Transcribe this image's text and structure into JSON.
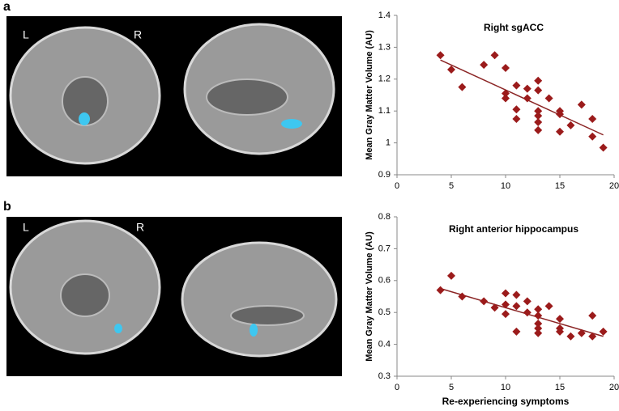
{
  "figure": {
    "panels": [
      {
        "label": "a",
        "left": "L",
        "right": "R"
      },
      {
        "label": "b",
        "left": "L",
        "right": "R"
      }
    ]
  },
  "chart_data": [
    {
      "type": "scatter",
      "title": "Right sgACC",
      "ylabel": "Mean Gray Matter Volume (AU)",
      "x": [
        4,
        5,
        6,
        8,
        9,
        10,
        10,
        10,
        11,
        11,
        11,
        12,
        12,
        13,
        13,
        13,
        13,
        13,
        13,
        14,
        15,
        15,
        15,
        16,
        17,
        18,
        18,
        19
      ],
      "values": [
        1.275,
        1.23,
        1.175,
        1.245,
        1.275,
        1.235,
        1.155,
        1.14,
        1.18,
        1.105,
        1.075,
        1.17,
        1.14,
        1.195,
        1.165,
        1.1,
        1.085,
        1.065,
        1.04,
        1.14,
        1.1,
        1.09,
        1.035,
        1.055,
        1.12,
        1.075,
        1.02,
        0.985
      ],
      "color": "#9b1b1b",
      "trendline": {
        "x": [
          4,
          19
        ],
        "y": [
          1.26,
          1.025
        ],
        "color": "#8b2525"
      },
      "xlim": [
        0,
        20
      ],
      "xticks": [
        0,
        5,
        10,
        15,
        20
      ],
      "ylim": [
        0.9,
        1.4
      ],
      "yticks": [
        0.9,
        1,
        1.1,
        1.2,
        1.3,
        1.4
      ]
    },
    {
      "type": "scatter",
      "title": "Right anterior hippocampus",
      "ylabel": "Mean Gray Matter Volume (AU)",
      "xlabel": "Re-experiencing symptoms",
      "x": [
        4,
        5,
        6,
        8,
        9,
        10,
        10,
        10,
        11,
        11,
        11,
        12,
        12,
        13,
        13,
        13,
        13,
        13,
        14,
        15,
        15,
        15,
        16,
        17,
        18,
        18,
        19
      ],
      "values": [
        0.57,
        0.615,
        0.55,
        0.535,
        0.515,
        0.56,
        0.525,
        0.495,
        0.555,
        0.52,
        0.44,
        0.535,
        0.5,
        0.51,
        0.49,
        0.465,
        0.45,
        0.435,
        0.52,
        0.48,
        0.45,
        0.44,
        0.425,
        0.435,
        0.49,
        0.425,
        0.44
      ],
      "color": "#9b1b1b",
      "trendline": {
        "x": [
          4,
          19
        ],
        "y": [
          0.575,
          0.425
        ],
        "color": "#8b2525"
      },
      "xlim": [
        0,
        20
      ],
      "xticks": [
        0,
        5,
        10,
        15,
        20
      ],
      "ylim": [
        0.3,
        0.8
      ],
      "yticks": [
        0.3,
        0.4,
        0.5,
        0.6,
        0.7,
        0.8
      ]
    }
  ]
}
